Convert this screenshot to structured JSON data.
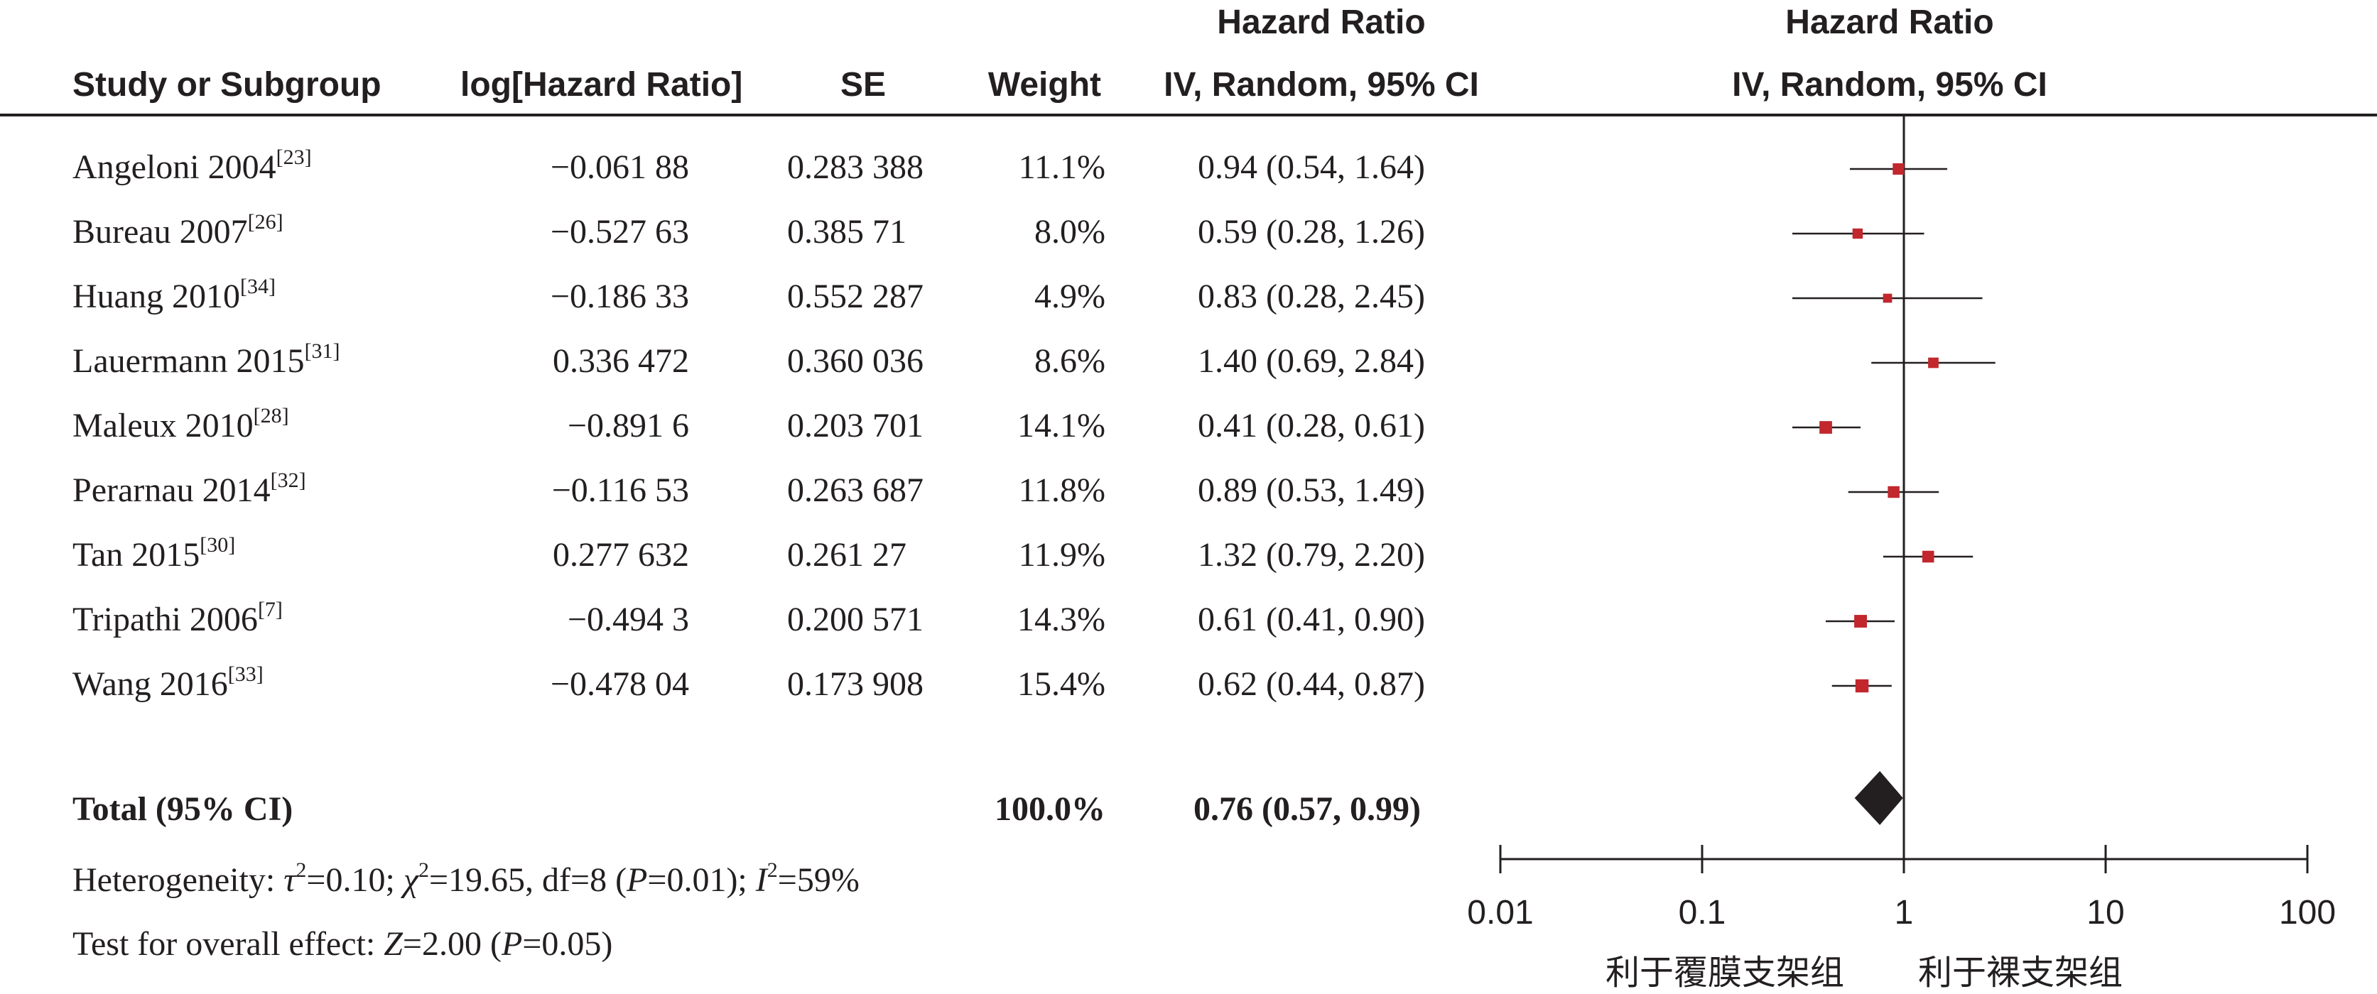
{
  "headers": {
    "study": "Study or Subgroup",
    "log_hr": "log[Hazard Ratio]",
    "se": "SE",
    "weight": "Weight",
    "hr_top": "Hazard Ratio",
    "hr_bottom": "IV, Random, 95% CI",
    "plot_top": "Hazard Ratio",
    "plot_bottom": "IV, Random, 95% CI"
  },
  "studies": [
    {
      "name": "Angeloni 2004",
      "ref": "[23]",
      "log_hr": "−0.061 88",
      "se": "0.283 388",
      "weight": "11.1%",
      "ci": "0.94 (0.54, 1.64)"
    },
    {
      "name": "Bureau 2007",
      "ref": "[26]",
      "log_hr": "−0.527 63",
      "se": "0.385 71",
      "weight": "8.0%",
      "ci": "0.59 (0.28, 1.26)"
    },
    {
      "name": "Huang 2010",
      "ref": "[34]",
      "log_hr": "−0.186 33",
      "se": "0.552 287",
      "weight": "4.9%",
      "ci": "0.83 (0.28, 2.45)"
    },
    {
      "name": "Lauermann 2015",
      "ref": "[31]",
      "log_hr": "0.336 472",
      "se": "0.360 036",
      "weight": "8.6%",
      "ci": "1.40 (0.69, 2.84)"
    },
    {
      "name": "Maleux 2010",
      "ref": "[28]",
      "log_hr": "−0.891 6",
      "se": "0.203 701",
      "weight": "14.1%",
      "ci": "0.41 (0.28, 0.61)"
    },
    {
      "name": "Perarnau 2014",
      "ref": "[32]",
      "log_hr": "−0.116 53",
      "se": "0.263 687",
      "weight": "11.8%",
      "ci": "0.89 (0.53, 1.49)"
    },
    {
      "name": "Tan 2015",
      "ref": "[30]",
      "log_hr": "0.277 632",
      "se": "0.261 27",
      "weight": "11.9%",
      "ci": "1.32 (0.79, 2.20)"
    },
    {
      "name": "Tripathi 2006",
      "ref": "[7]",
      "log_hr": "−0.494 3",
      "se": "0.200 571",
      "weight": "14.3%",
      "ci": "0.61 (0.41, 0.90)"
    },
    {
      "name": "Wang 2016",
      "ref": "[33]",
      "log_hr": "−0.478 04",
      "se": "0.173 908",
      "weight": "15.4%",
      "ci": "0.62 (0.44, 0.87)"
    }
  ],
  "total": {
    "label": "Total (95% CI)",
    "weight": "100.0%",
    "ci": "0.76 (0.57, 0.99)"
  },
  "heterogeneity": {
    "prefix": "Heterogeneity: ",
    "tau": "τ",
    "tau_val": "=0.10; ",
    "chi": "χ",
    "chi_val": "=19.65, df=8 (",
    "p": "P",
    "p_val": "=0.01); ",
    "i": "I",
    "i_val": "=59%"
  },
  "overall": {
    "prefix": "Test for overall effect: ",
    "z": "Z",
    "z_val": "=2.00 (",
    "p": "P",
    "p_val": "=0.05)"
  },
  "axis_labels": {
    "left": "利于覆膜支架组",
    "right": "利于裸支架组"
  },
  "colors": {
    "marker": "#c1272d",
    "ink": "#231f20"
  },
  "chart_data": {
    "type": "scatter",
    "subtype": "forest",
    "x_scale": "log",
    "xlim": [
      0.01,
      100
    ],
    "ticks": [
      "0.01",
      "0.1",
      "1",
      "10",
      "100"
    ],
    "tick_values": [
      0.01,
      0.1,
      1,
      10,
      100
    ],
    "reference_line": 1,
    "points": [
      {
        "study": "Angeloni 2004",
        "estimate": 0.94,
        "lower": 0.54,
        "upper": 1.64,
        "weight": 11.1
      },
      {
        "study": "Bureau 2007",
        "estimate": 0.59,
        "lower": 0.28,
        "upper": 1.26,
        "weight": 8.0
      },
      {
        "study": "Huang 2010",
        "estimate": 0.83,
        "lower": 0.28,
        "upper": 2.45,
        "weight": 4.9
      },
      {
        "study": "Lauermann 2015",
        "estimate": 1.4,
        "lower": 0.69,
        "upper": 2.84,
        "weight": 8.6
      },
      {
        "study": "Maleux 2010",
        "estimate": 0.41,
        "lower": 0.28,
        "upper": 0.61,
        "weight": 14.1
      },
      {
        "study": "Perarnau 2014",
        "estimate": 0.89,
        "lower": 0.53,
        "upper": 1.49,
        "weight": 11.8
      },
      {
        "study": "Tan 2015",
        "estimate": 1.32,
        "lower": 0.79,
        "upper": 2.2,
        "weight": 11.9
      },
      {
        "study": "Tripathi 2006",
        "estimate": 0.61,
        "lower": 0.41,
        "upper": 0.9,
        "weight": 14.3
      },
      {
        "study": "Wang 2016",
        "estimate": 0.62,
        "lower": 0.44,
        "upper": 0.87,
        "weight": 15.4
      }
    ],
    "pooled": {
      "estimate": 0.76,
      "lower": 0.57,
      "upper": 0.99
    }
  }
}
